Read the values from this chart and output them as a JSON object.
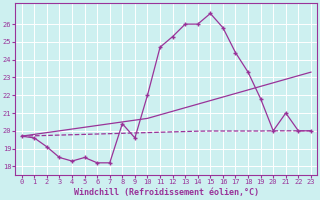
{
  "xlabel": "Windchill (Refroidissement éolien,°C)",
  "bg_color": "#cdf0f0",
  "grid_color": "#ffffff",
  "line_color": "#993399",
  "xlim": [
    -0.5,
    23.5
  ],
  "ylim": [
    17.5,
    27.2
  ],
  "xticks": [
    0,
    1,
    2,
    3,
    4,
    5,
    6,
    7,
    8,
    9,
    10,
    11,
    12,
    13,
    14,
    15,
    16,
    17,
    18,
    19,
    20,
    21,
    22,
    23
  ],
  "yticks": [
    18,
    19,
    20,
    21,
    22,
    23,
    24,
    25,
    26
  ],
  "hours": [
    0,
    1,
    2,
    3,
    4,
    5,
    6,
    7,
    8,
    9,
    10,
    11,
    12,
    13,
    14,
    15,
    16,
    17,
    18,
    19,
    20,
    21,
    22,
    23
  ],
  "line_wavy": [
    19.7,
    19.6,
    19.1,
    18.5,
    18.3,
    18.5,
    18.2,
    18.2,
    20.4,
    19.6,
    22.0,
    24.7,
    25.3,
    26.0,
    26.0,
    26.6,
    25.8,
    24.4,
    23.3,
    21.8,
    20.0,
    21.0,
    20.0,
    20.0
  ],
  "line_upper_x": [
    0,
    1,
    2,
    3,
    4,
    5,
    6,
    7,
    8,
    9,
    10,
    11,
    12,
    13,
    14,
    15,
    16,
    17,
    18,
    19,
    20,
    21,
    22,
    23
  ],
  "line_upper_y": [
    19.7,
    19.8,
    19.9,
    20.0,
    20.1,
    20.2,
    20.3,
    20.4,
    20.5,
    20.6,
    20.7,
    20.9,
    21.1,
    21.3,
    21.5,
    21.7,
    21.9,
    22.1,
    22.3,
    22.5,
    22.7,
    22.9,
    23.1,
    23.3
  ],
  "line_lower_x": [
    0,
    1,
    2,
    3,
    4,
    5,
    6,
    7,
    8,
    9,
    10,
    11,
    12,
    13,
    14,
    15,
    16,
    17,
    18,
    19,
    20,
    21,
    22,
    23
  ],
  "line_lower_y": [
    19.7,
    19.72,
    19.74,
    19.76,
    19.78,
    19.8,
    19.82,
    19.84,
    19.86,
    19.88,
    19.9,
    19.92,
    19.94,
    19.96,
    19.98,
    19.99,
    19.99,
    19.99,
    19.99,
    19.99,
    20.0,
    20.0,
    20.0,
    20.0
  ]
}
